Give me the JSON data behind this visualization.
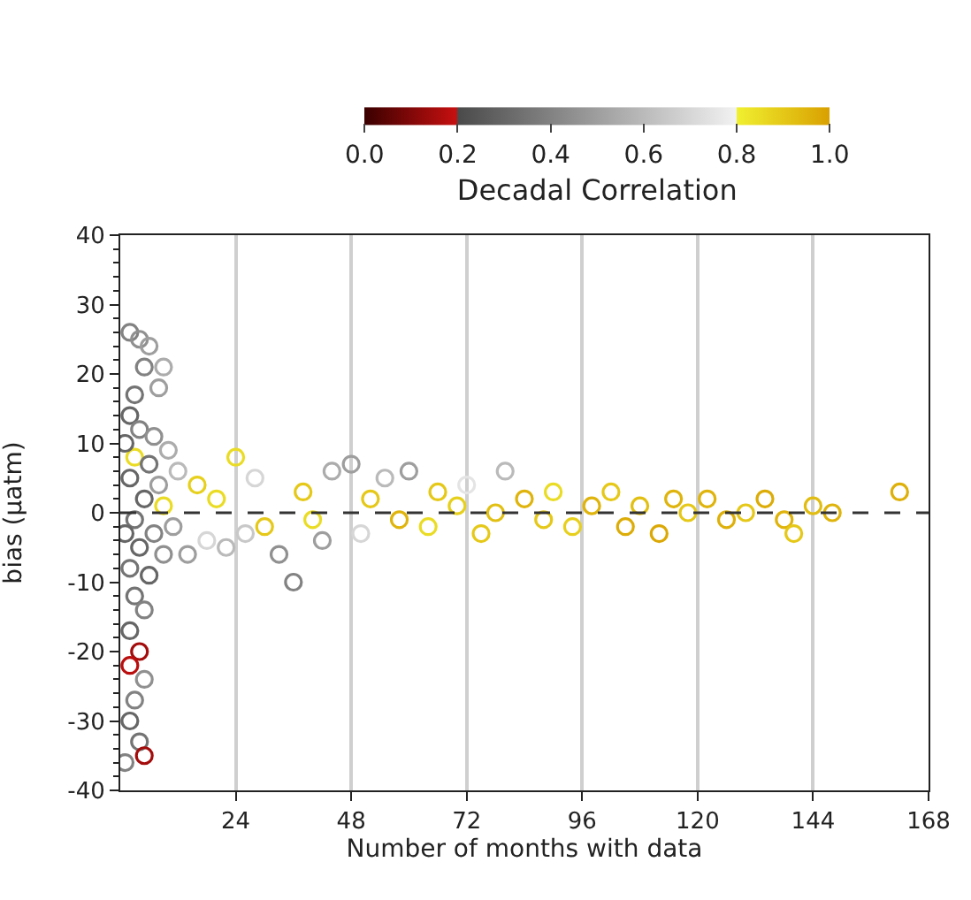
{
  "chart_data": {
    "type": "scatter",
    "xlabel": "Number of months with data",
    "ylabel": "bias (μatm)",
    "clabel": "Decadal Correlation",
    "xlim": [
      0,
      168
    ],
    "xticks": [
      24,
      48,
      72,
      96,
      120,
      144,
      168
    ],
    "ylim": [
      -40,
      40
    ],
    "yticks": [
      -40,
      -30,
      -20,
      -10,
      0,
      10,
      20,
      30,
      40
    ],
    "clim": [
      0,
      1
    ],
    "cticks": [
      {
        "value": 0,
        "label": "0.0"
      },
      {
        "value": 0.2,
        "label": "0.2"
      },
      {
        "value": 0.4,
        "label": "0.4"
      },
      {
        "value": 0.6,
        "label": "0.6"
      },
      {
        "value": 0.8,
        "label": "0.8"
      },
      {
        "value": 1,
        "label": "1.0"
      }
    ],
    "grid": "x",
    "marker": "circle",
    "legend": false,
    "ref_lines": [
      {
        "axis": "y",
        "value": 0,
        "label": null,
        "color": "#333333",
        "line_style": "dashed"
      }
    ],
    "x": [
      2,
      4,
      6,
      5,
      9,
      8,
      3,
      2,
      4,
      7,
      10,
      3,
      6,
      2,
      8,
      12,
      5,
      9,
      3,
      7,
      11,
      4,
      9,
      2,
      6,
      3,
      5,
      2,
      4,
      2,
      5,
      3,
      2,
      4,
      5,
      1,
      1,
      1,
      14,
      16,
      18,
      20,
      22,
      24,
      26,
      28,
      30,
      33,
      36,
      38,
      40,
      42,
      44,
      48,
      50,
      52,
      55,
      58,
      60,
      64,
      66,
      70,
      72,
      75,
      78,
      80,
      84,
      88,
      90,
      94,
      98,
      102,
      105,
      108,
      112,
      115,
      118,
      122,
      126,
      130,
      134,
      138,
      140,
      144,
      148,
      162
    ],
    "values": [
      26,
      25,
      24,
      21,
      21,
      18,
      17,
      14,
      12,
      11,
      9,
      8,
      7,
      5,
      4,
      6,
      2,
      1,
      -1,
      -3,
      -2,
      -5,
      -6,
      -8,
      -9,
      -12,
      -14,
      -17,
      -20,
      -22,
      -24,
      -27,
      -30,
      -33,
      -35,
      -36,
      -3,
      10,
      -6,
      4,
      -4,
      2,
      -5,
      8,
      -3,
      5,
      -2,
      -6,
      -10,
      3,
      -1,
      -4,
      6,
      7,
      -3,
      2,
      5,
      -1,
      6,
      -2,
      3,
      1,
      4,
      -3,
      0,
      6,
      2,
      -1,
      3,
      -2,
      1,
      3,
      -2,
      1,
      -3,
      2,
      0,
      2,
      -1,
      0,
      2,
      -1,
      -3,
      1,
      0,
      3
    ],
    "cvalues": [
      0.4,
      0.45,
      0.5,
      0.4,
      0.55,
      0.5,
      0.35,
      0.3,
      0.4,
      0.45,
      0.55,
      0.85,
      0.35,
      0.3,
      0.5,
      0.6,
      0.3,
      0.85,
      0.35,
      0.4,
      0.5,
      0.3,
      0.45,
      0.35,
      0.3,
      0.35,
      0.4,
      0.3,
      0.15,
      0.18,
      0.45,
      0.4,
      0.3,
      0.35,
      0.15,
      0.4,
      0.3,
      0.3,
      0.5,
      0.88,
      0.7,
      0.85,
      0.6,
      0.85,
      0.65,
      0.7,
      0.9,
      0.45,
      0.4,
      0.9,
      0.85,
      0.5,
      0.55,
      0.5,
      0.7,
      0.9,
      0.6,
      0.95,
      0.5,
      0.85,
      0.9,
      0.88,
      0.75,
      0.9,
      0.92,
      0.6,
      0.95,
      0.9,
      0.85,
      0.88,
      0.95,
      0.9,
      0.97,
      0.92,
      0.98,
      0.95,
      0.9,
      0.95,
      0.96,
      0.9,
      0.97,
      0.95,
      0.9,
      0.93,
      0.95,
      0.96
    ]
  }
}
